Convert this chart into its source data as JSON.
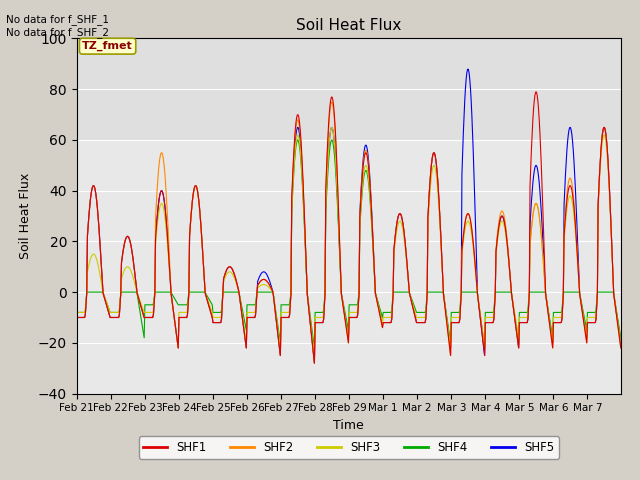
{
  "title": "Soil Heat Flux",
  "xlabel": "Time",
  "ylabel": "Soil Heat Flux",
  "ylim": [
    -40,
    100
  ],
  "yticks": [
    -40,
    -20,
    0,
    20,
    40,
    60,
    80,
    100
  ],
  "annotation_text": "No data for f_SHF_1\nNo data for f_SHF_2",
  "box_label": "TZ_fmet",
  "legend_entries": [
    "SHF1",
    "SHF2",
    "SHF3",
    "SHF4",
    "SHF5"
  ],
  "colors": {
    "SHF1": "#dd0000",
    "SHF2": "#ff8800",
    "SHF3": "#cccc00",
    "SHF4": "#00aa00",
    "SHF5": "#0000ee"
  },
  "xtick_labels": [
    "Feb 21",
    "Feb 22",
    "Feb 23",
    "Feb 24",
    "Feb 25",
    "Feb 26",
    "Feb 27",
    "Feb 28",
    "Feb 29",
    "Mar 1",
    "Mar 2",
    "Mar 3",
    "Mar 4",
    "Mar 5",
    "Mar 6",
    "Mar 7"
  ],
  "shf1_peaks": [
    42,
    22,
    40,
    42,
    10,
    5,
    70,
    77,
    55,
    31,
    55,
    31,
    30,
    79,
    42,
    65
  ],
  "shf2_peaks": [
    42,
    22,
    55,
    42,
    10,
    5,
    68,
    75,
    56,
    31,
    55,
    31,
    32,
    35,
    45,
    65
  ],
  "shf3_peaks": [
    15,
    10,
    35,
    42,
    8,
    3,
    62,
    65,
    50,
    28,
    50,
    28,
    28,
    35,
    38,
    62
  ],
  "shf4_peaks": [
    0,
    0,
    0,
    0,
    0,
    0,
    60,
    60,
    48,
    0,
    0,
    0,
    0,
    0,
    0,
    0
  ],
  "shf5_peaks": [
    42,
    22,
    40,
    42,
    10,
    8,
    65,
    65,
    58,
    31,
    55,
    88,
    30,
    50,
    65,
    65
  ],
  "shf1_min": [
    -10,
    -10,
    -10,
    -10,
    -12,
    -10,
    -10,
    -12,
    -10,
    -12,
    -12,
    -12,
    -12,
    -12,
    -12,
    -12
  ],
  "shf2_min": [
    -10,
    -10,
    -10,
    -10,
    -12,
    -10,
    -10,
    -12,
    -10,
    -12,
    -12,
    -12,
    -12,
    -12,
    -12,
    -12
  ],
  "shf3_min": [
    -8,
    -8,
    -8,
    -8,
    -10,
    -8,
    -8,
    -10,
    -8,
    -10,
    -10,
    -10,
    -10,
    -10,
    -10,
    -10
  ],
  "shf4_min": [
    -8,
    -8,
    -5,
    -5,
    -8,
    -5,
    -5,
    -8,
    -5,
    -8,
    -8,
    -8,
    -8,
    -8,
    -8,
    -8
  ],
  "shf5_min": [
    -10,
    -10,
    -10,
    -10,
    -12,
    -10,
    -10,
    -12,
    -10,
    -12,
    -12,
    -12,
    -12,
    -12,
    -12,
    -12
  ],
  "shf1_trough": [
    -10,
    -10,
    -22,
    -10,
    -22,
    -25,
    -28,
    -20,
    -14,
    -12,
    -25,
    -25,
    -22,
    -22,
    -20,
    -22
  ],
  "shf2_trough": [
    -10,
    -10,
    -22,
    -10,
    -22,
    -25,
    -28,
    -20,
    -14,
    -12,
    -25,
    -22,
    -22,
    -22,
    -20,
    -22
  ],
  "shf3_trough": [
    -8,
    -8,
    -22,
    -8,
    -20,
    -22,
    -25,
    -18,
    -12,
    -10,
    -22,
    -22,
    -18,
    -20,
    -18,
    -20
  ],
  "shf4_trough": [
    -8,
    -18,
    -5,
    -5,
    -15,
    -20,
    -22,
    -15,
    -10,
    -8,
    -20,
    -22,
    -20,
    -18,
    -15,
    -18
  ],
  "shf5_trough": [
    -10,
    -10,
    -22,
    -10,
    -22,
    -25,
    -28,
    -18,
    -12,
    -12,
    -22,
    -25,
    -22,
    -20,
    -18,
    -20
  ]
}
